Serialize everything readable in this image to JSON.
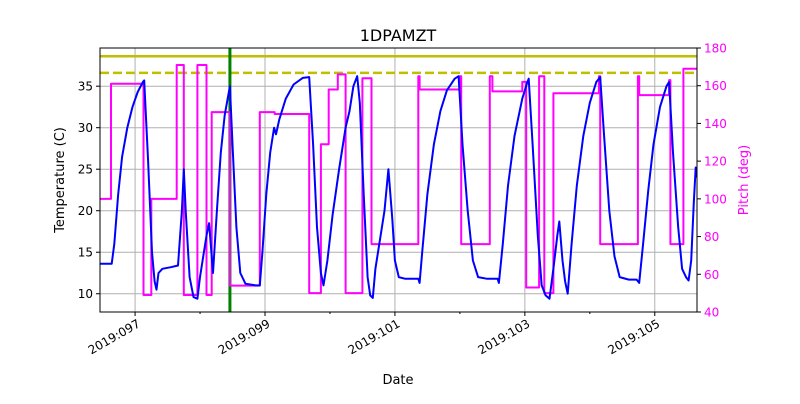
{
  "chart_data": {
    "type": "line",
    "title": "1DPAMZT",
    "xlabel": "Date",
    "ylabel": "Temperature (C)",
    "y2label": "Pitch (deg)",
    "xlim": [
      96.46,
      105.65
    ],
    "ylim": [
      7.8,
      39.6
    ],
    "y2lim": [
      40,
      180
    ],
    "x_ticks": [
      {
        "value": 97,
        "label": "2019:097"
      },
      {
        "value": 99,
        "label": "2019:099"
      },
      {
        "value": 101,
        "label": "2019:101"
      },
      {
        "value": 103,
        "label": "2019:103"
      },
      {
        "value": 105,
        "label": "2019:105"
      }
    ],
    "x_minor_ticks": [
      98,
      100,
      102,
      104
    ],
    "y_ticks": [
      10,
      15,
      20,
      25,
      30,
      35
    ],
    "y2_ticks": [
      40,
      60,
      80,
      100,
      120,
      140,
      160,
      180
    ],
    "grid": true,
    "colors": {
      "temperature": "#0000ff",
      "pitch": "#ff00ff",
      "planning_limit": "#bfbf00",
      "now_marker": "#008000",
      "axis_text": "#000000",
      "pitch_axis_text": "#ff00ff",
      "grid": "#b0b0b0"
    },
    "reference_lines": [
      {
        "name": "limit",
        "axis": "y",
        "value": 38.6,
        "style": "solid",
        "color": "#bfbf00"
      },
      {
        "name": "planning-limit",
        "axis": "y",
        "value": 36.6,
        "style": "dashed",
        "color": "#bfbf00"
      },
      {
        "name": "now",
        "axis": "x",
        "value": 98.46,
        "style": "solid",
        "color": "#008000"
      }
    ],
    "series": [
      {
        "name": "Temperature",
        "axis": "left",
        "color": "#0000ff",
        "points": [
          [
            96.46,
            13.6
          ],
          [
            96.6,
            13.6
          ],
          [
            96.64,
            13.6
          ],
          [
            96.68,
            16
          ],
          [
            96.74,
            22
          ],
          [
            96.8,
            26.5
          ],
          [
            96.88,
            30
          ],
          [
            96.96,
            32.5
          ],
          [
            97.04,
            34.3
          ],
          [
            97.12,
            35.5
          ],
          [
            97.14,
            35.7
          ],
          [
            97.2,
            26
          ],
          [
            97.26,
            15
          ],
          [
            97.3,
            11.5
          ],
          [
            97.33,
            10.5
          ],
          [
            97.36,
            12.5
          ],
          [
            97.42,
            13
          ],
          [
            97.55,
            13.2
          ],
          [
            97.66,
            13.4
          ],
          [
            97.72,
            20
          ],
          [
            97.75,
            25
          ],
          [
            97.78,
            20
          ],
          [
            97.84,
            12
          ],
          [
            97.9,
            9.6
          ],
          [
            97.96,
            9.4
          ],
          [
            98.0,
            12
          ],
          [
            98.1,
            17
          ],
          [
            98.14,
            18.5
          ],
          [
            98.2,
            12.5
          ],
          [
            98.26,
            20
          ],
          [
            98.32,
            27
          ],
          [
            98.38,
            31.5
          ],
          [
            98.46,
            35
          ],
          [
            98.5,
            28
          ],
          [
            98.56,
            18
          ],
          [
            98.62,
            12.5
          ],
          [
            98.7,
            11.2
          ],
          [
            98.86,
            11
          ],
          [
            98.92,
            11
          ],
          [
            98.96,
            15
          ],
          [
            99.02,
            22
          ],
          [
            99.08,
            27
          ],
          [
            99.14,
            30
          ],
          [
            99.17,
            29.2
          ],
          [
            99.22,
            31
          ],
          [
            99.32,
            33.5
          ],
          [
            99.44,
            35.2
          ],
          [
            99.58,
            36
          ],
          [
            99.68,
            36.1
          ],
          [
            99.74,
            28
          ],
          [
            99.8,
            18
          ],
          [
            99.86,
            12.5
          ],
          [
            99.9,
            11
          ],
          [
            99.96,
            14
          ],
          [
            100.04,
            19.5
          ],
          [
            100.14,
            25
          ],
          [
            100.24,
            30
          ],
          [
            100.3,
            32
          ],
          [
            100.36,
            35
          ],
          [
            100.42,
            36.2
          ],
          [
            100.46,
            33
          ],
          [
            100.52,
            22
          ],
          [
            100.58,
            12
          ],
          [
            100.62,
            9.8
          ],
          [
            100.66,
            9.5
          ],
          [
            100.7,
            13
          ],
          [
            100.78,
            17
          ],
          [
            100.84,
            20
          ],
          [
            100.9,
            25
          ],
          [
            100.96,
            19
          ],
          [
            101.0,
            14
          ],
          [
            101.06,
            12
          ],
          [
            101.16,
            11.8
          ],
          [
            101.36,
            11.8
          ],
          [
            101.38,
            11.3
          ],
          [
            101.42,
            15
          ],
          [
            101.5,
            22
          ],
          [
            101.6,
            28
          ],
          [
            101.7,
            32
          ],
          [
            101.8,
            34.5
          ],
          [
            101.92,
            35.9
          ],
          [
            101.98,
            36.2
          ],
          [
            102.04,
            28
          ],
          [
            102.12,
            20
          ],
          [
            102.2,
            14
          ],
          [
            102.28,
            12
          ],
          [
            102.42,
            11.8
          ],
          [
            102.58,
            11.8
          ],
          [
            102.6,
            11.3
          ],
          [
            102.66,
            16
          ],
          [
            102.74,
            23
          ],
          [
            102.84,
            29
          ],
          [
            102.96,
            33.5
          ],
          [
            103.04,
            35.5
          ],
          [
            103.06,
            35.9
          ],
          [
            103.12,
            28
          ],
          [
            103.2,
            17
          ],
          [
            103.26,
            11
          ],
          [
            103.32,
            9.8
          ],
          [
            103.38,
            9.4
          ],
          [
            103.44,
            13
          ],
          [
            103.5,
            17
          ],
          [
            103.53,
            18.7
          ],
          [
            103.58,
            14
          ],
          [
            103.62,
            11.5
          ],
          [
            103.66,
            10
          ],
          [
            103.72,
            16
          ],
          [
            103.8,
            23
          ],
          [
            103.9,
            29
          ],
          [
            104.0,
            33
          ],
          [
            104.1,
            35.5
          ],
          [
            104.16,
            36.1
          ],
          [
            104.22,
            29
          ],
          [
            104.3,
            20
          ],
          [
            104.38,
            14.5
          ],
          [
            104.46,
            12
          ],
          [
            104.6,
            11.7
          ],
          [
            104.72,
            11.7
          ],
          [
            104.76,
            11.3
          ],
          [
            104.82,
            16
          ],
          [
            104.9,
            22.5
          ],
          [
            104.98,
            28
          ],
          [
            105.08,
            32.5
          ],
          [
            105.18,
            35
          ],
          [
            105.22,
            35.5
          ],
          [
            105.28,
            27
          ],
          [
            105.36,
            18
          ],
          [
            105.42,
            13
          ],
          [
            105.48,
            12
          ],
          [
            105.52,
            11.6
          ],
          [
            105.56,
            14
          ],
          [
            105.6,
            21
          ],
          [
            105.63,
            25.2
          ],
          [
            105.65,
            24
          ]
        ]
      },
      {
        "name": "Pitch",
        "axis": "right",
        "color": "#ff00ff",
        "points": [
          [
            96.46,
            100
          ],
          [
            96.63,
            100
          ],
          [
            96.63,
            161
          ],
          [
            97.08,
            161
          ],
          [
            97.13,
            161
          ],
          [
            97.13,
            49
          ],
          [
            97.25,
            49
          ],
          [
            97.25,
            100
          ],
          [
            97.64,
            100
          ],
          [
            97.64,
            171
          ],
          [
            97.75,
            171
          ],
          [
            97.75,
            49
          ],
          [
            97.96,
            49
          ],
          [
            97.96,
            171
          ],
          [
            98.1,
            171
          ],
          [
            98.1,
            49
          ],
          [
            98.18,
            49
          ],
          [
            98.18,
            146
          ],
          [
            98.46,
            146
          ],
          [
            98.46,
            54
          ],
          [
            98.92,
            54
          ],
          [
            98.92,
            146
          ],
          [
            99.15,
            146
          ],
          [
            99.15,
            145
          ],
          [
            99.68,
            145
          ],
          [
            99.68,
            50
          ],
          [
            99.86,
            50
          ],
          [
            99.86,
            129
          ],
          [
            99.98,
            129
          ],
          [
            99.98,
            158
          ],
          [
            100.12,
            158
          ],
          [
            100.12,
            166
          ],
          [
            100.24,
            166
          ],
          [
            100.24,
            50
          ],
          [
            100.5,
            50
          ],
          [
            100.5,
            164
          ],
          [
            100.64,
            164
          ],
          [
            100.64,
            76
          ],
          [
            101.18,
            76
          ],
          [
            101.36,
            76
          ],
          [
            101.36,
            165
          ],
          [
            101.38,
            165
          ],
          [
            101.38,
            158
          ],
          [
            102.0,
            158
          ],
          [
            102.0,
            165
          ],
          [
            102.02,
            165
          ],
          [
            102.02,
            76
          ],
          [
            102.46,
            76
          ],
          [
            102.46,
            165
          ],
          [
            102.5,
            165
          ],
          [
            102.5,
            157
          ],
          [
            102.96,
            157
          ],
          [
            102.96,
            162
          ],
          [
            103.02,
            162
          ],
          [
            103.02,
            53
          ],
          [
            103.22,
            53
          ],
          [
            103.22,
            165
          ],
          [
            103.3,
            165
          ],
          [
            103.3,
            50
          ],
          [
            103.44,
            50
          ],
          [
            103.44,
            156
          ],
          [
            104.14,
            156
          ],
          [
            104.14,
            165
          ],
          [
            104.16,
            165
          ],
          [
            104.16,
            76
          ],
          [
            104.74,
            76
          ],
          [
            104.74,
            165
          ],
          [
            104.76,
            165
          ],
          [
            104.76,
            155
          ],
          [
            105.22,
            155
          ],
          [
            105.22,
            163
          ],
          [
            105.24,
            163
          ],
          [
            105.24,
            76
          ],
          [
            105.44,
            76
          ],
          [
            105.44,
            169
          ],
          [
            105.65,
            169
          ]
        ]
      }
    ]
  }
}
